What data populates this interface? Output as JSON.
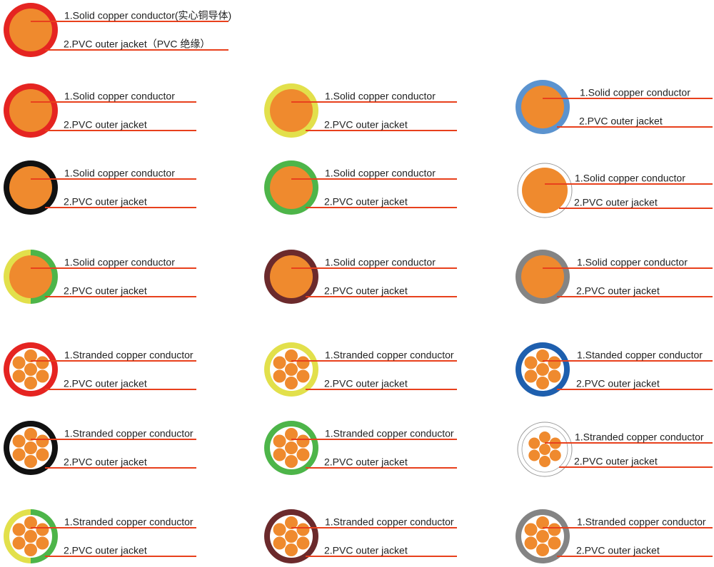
{
  "items": [
    {
      "conductor": "1.Solid copper conductor(实心铜导体)",
      "jacket": "2.PVC outer jacket（PVC 绝缘）"
    },
    {
      "conductor": "1.Solid copper conductor",
      "jacket": "2.PVC outer jacket"
    },
    {
      "conductor": "1.Solid copper conductor",
      "jacket": "2.PVC outer jacket"
    },
    {
      "conductor": "1.Solid copper conductor",
      "jacket": "2.PVC outer jacket"
    },
    {
      "conductor": "1.Solid copper conductor",
      "jacket": "2.PVC outer jacket"
    },
    {
      "conductor": "1.Solid copper conductor",
      "jacket": "2.PVC outer jacket"
    },
    {
      "conductor": "1.Solid copper conductor",
      "jacket": "2.PVC outer jacket"
    },
    {
      "conductor": "1.Solid copper conductor",
      "jacket": "2.PVC outer jacket"
    },
    {
      "conductor": "1.Solid copper conductor",
      "jacket": "2.PVC outer jacket"
    },
    {
      "conductor": "1.Solid copper conductor",
      "jacket": "2.PVC outer jacket"
    },
    {
      "conductor": "1.Stranded copper conductor",
      "jacket": "2.PVC outer jacket"
    },
    {
      "conductor": "1.Stranded copper conductor",
      "jacket": "2.PVC outer jacket"
    },
    {
      "conductor": "1.Standed copper conductor",
      "jacket": "2.PVC outer jacket"
    },
    {
      "conductor": "1.Stranded copper conductor",
      "jacket": "2.PVC outer jacket"
    },
    {
      "conductor": "1.Stranded copper conductor",
      "jacket": "2.PVC outer jacket"
    },
    {
      "conductor": "1.Stranded copper conductor",
      "jacket": "2.PVC outer jacket"
    },
    {
      "conductor": "1.Stranded copper conductor",
      "jacket": "2.PVC outer jacket"
    },
    {
      "conductor": "1.Stranded copper conductor",
      "jacket": "2.PVC outer jacket"
    },
    {
      "conductor": "1.Stranded copper conductor",
      "jacket": "2.PVC outer jacket"
    }
  ]
}
